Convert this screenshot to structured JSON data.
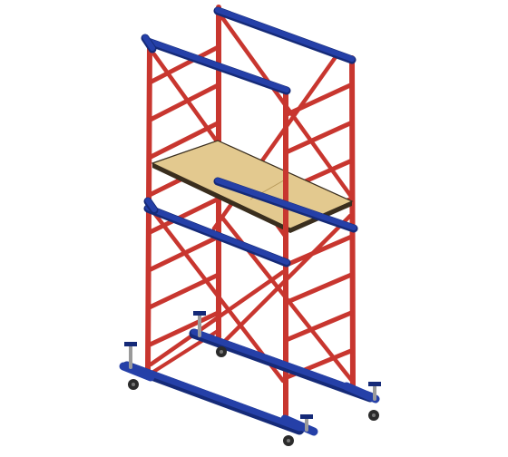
{
  "image": {
    "subject": "mobile-scaffold-tower",
    "colors": {
      "background": "#ffffff",
      "frame_red": "#c8362f",
      "frame_red_dark": "#8e1f1b",
      "rail_blue": "#2540a8",
      "rail_blue_dark": "#152a78",
      "deck_wood": "#e3c98f",
      "deck_edge": "#3a2e1e",
      "wheel": "#2b2b2b",
      "jack_gray": "#9a9a9a"
    }
  }
}
